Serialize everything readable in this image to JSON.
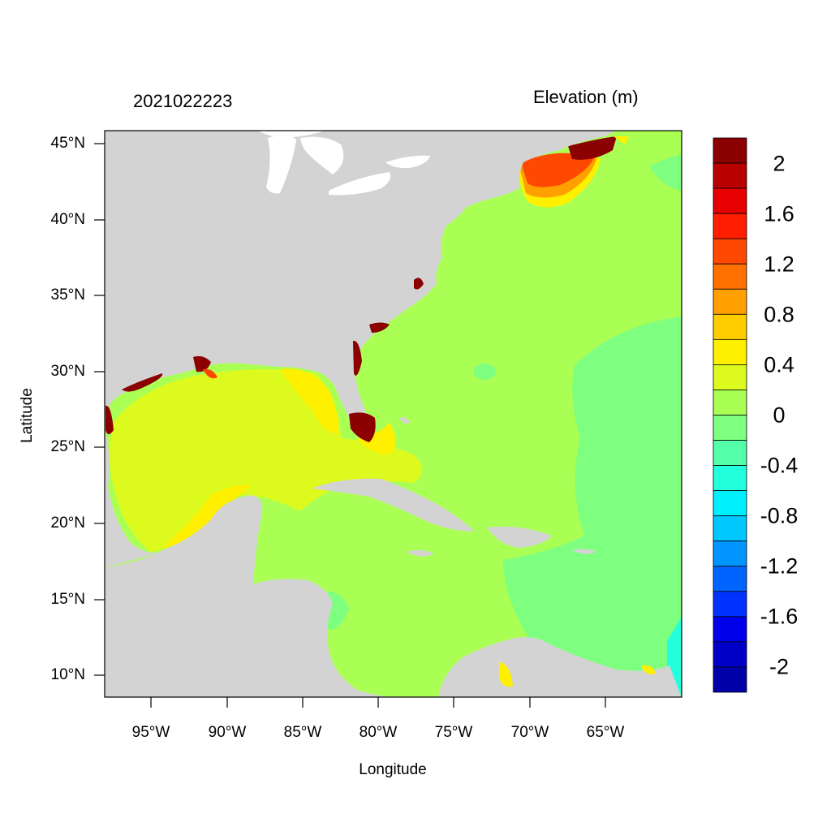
{
  "header": {
    "date_label": "2021022223",
    "variable_label": "Elevation (m)"
  },
  "axes": {
    "x_title": "Longitude",
    "y_title": "Latitude",
    "x_ticks": [
      "95°W",
      "90°W",
      "85°W",
      "80°W",
      "75°W",
      "70°W",
      "65°W"
    ],
    "y_ticks": [
      "45°N",
      "40°N",
      "35°N",
      "30°N",
      "25°N",
      "20°N",
      "15°N",
      "10°N"
    ]
  },
  "colorbar": {
    "labels": [
      "2",
      "1.6",
      "1.2",
      "0.8",
      "0.4",
      "0",
      "-0.4",
      "-0.8",
      "-1.2",
      "-1.6",
      "-2"
    ],
    "colors": [
      "#8b0000",
      "#b80000",
      "#e60000",
      "#ff1e00",
      "#ff4800",
      "#ff7000",
      "#ffa000",
      "#ffcc00",
      "#fff000",
      "#ddfa1e",
      "#aaff55",
      "#7fff7f",
      "#55ffaa",
      "#22ffdd",
      "#00f0ff",
      "#00c8ff",
      "#0095ff",
      "#0064ff",
      "#0032ff",
      "#0000ea",
      "#0000c8",
      "#0000a8"
    ]
  },
  "map": {
    "land_color": "#d3d3d3",
    "region": "Gulf of Mexico / Caribbean / Western North Atlantic"
  }
}
